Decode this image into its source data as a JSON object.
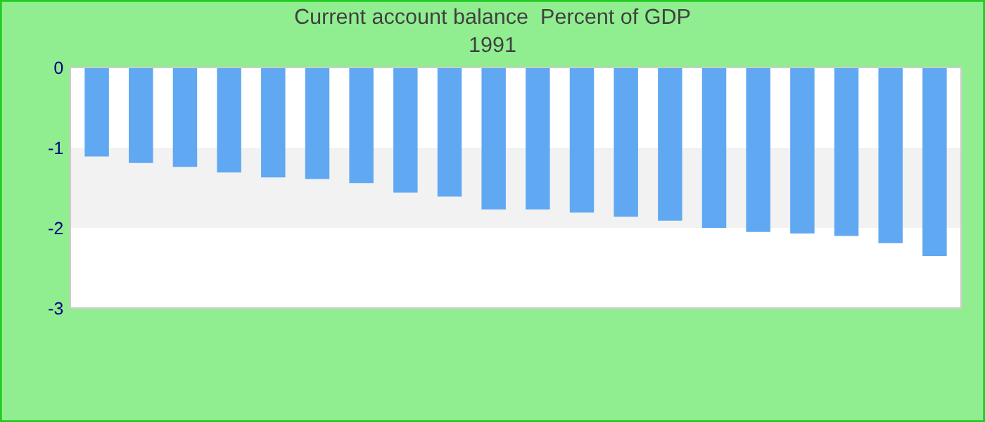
{
  "chart_data": {
    "type": "bar",
    "title": "Current account balance  Percent of GDP",
    "subtitle": "1991",
    "categories": [
      null,
      null,
      null,
      null,
      null,
      null,
      null,
      null,
      null,
      null,
      null,
      null,
      null,
      null,
      null,
      null,
      null,
      null,
      null,
      null
    ],
    "values": [
      -1.11,
      -1.19,
      -1.24,
      -1.31,
      -1.37,
      -1.39,
      -1.44,
      -1.56,
      -1.61,
      -1.77,
      -1.77,
      -1.81,
      -1.86,
      -1.91,
      -2.0,
      -2.05,
      -2.07,
      -2.1,
      -2.19,
      -2.35
    ],
    "color": "#60a8f2",
    "ylim": [
      -3,
      0
    ],
    "yticks": [
      -3,
      -2,
      -1,
      0
    ],
    "bands": [
      {
        "axis": "y",
        "from": -2,
        "to": -1,
        "color": "#f2f2f2"
      }
    ],
    "grid": false,
    "legend": false
  }
}
